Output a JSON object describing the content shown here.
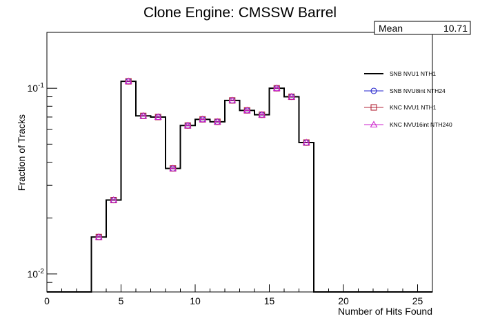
{
  "chart_data": {
    "type": "line",
    "title": "Clone Engine: CMSSW Barrel",
    "xlabel": "Number of Hits Found",
    "ylabel": "Fraction of Tracks",
    "x_range": [
      0,
      26
    ],
    "y_range": [
      0.008,
      0.2
    ],
    "y_scale": "log",
    "x_ticks": [
      0,
      5,
      10,
      15,
      20,
      25
    ],
    "y_tick_labels": [
      {
        "value": 0.01,
        "base": "10",
        "exp": "-2"
      },
      {
        "value": 0.1,
        "base": "10",
        "exp": "-1"
      }
    ],
    "bins": [
      0,
      1,
      2,
      3,
      4,
      5,
      6,
      7,
      8,
      9,
      10,
      11,
      12,
      13,
      14,
      15,
      16,
      17,
      18,
      19,
      20,
      21,
      22,
      23,
      24,
      25
    ],
    "series": [
      {
        "name": "SNB NVU1 NTH1",
        "style": "line",
        "color": "#000000",
        "values": [
          0,
          0,
          0,
          0.0158,
          0.025,
          0.109,
          0.071,
          0.07,
          0.037,
          0.063,
          0.068,
          0.066,
          0.086,
          0.076,
          0.072,
          0.1,
          0.09,
          0.051,
          0,
          0,
          0,
          0,
          0,
          0,
          0,
          0
        ]
      },
      {
        "name": "SNB NVU8int NTH24",
        "style": "circle",
        "color": "#2222cc",
        "values": [
          0,
          0,
          0,
          0.0158,
          0.025,
          0.109,
          0.071,
          0.07,
          0.037,
          0.063,
          0.068,
          0.066,
          0.086,
          0.076,
          0.072,
          0.1,
          0.09,
          0.051,
          0,
          0,
          0,
          0,
          0,
          0,
          0,
          0
        ]
      },
      {
        "name": "KNC NVU1 NTH1",
        "style": "square",
        "color": "#b3263a",
        "values": [
          0,
          0,
          0,
          0.0158,
          0.025,
          0.109,
          0.071,
          0.07,
          0.037,
          0.063,
          0.068,
          0.066,
          0.086,
          0.076,
          0.072,
          0.1,
          0.09,
          0.051,
          0,
          0,
          0,
          0,
          0,
          0,
          0,
          0
        ]
      },
      {
        "name": "KNC NVU16int NTH240",
        "style": "triangle",
        "color": "#cc22cc",
        "values": [
          0,
          0,
          0,
          0.0158,
          0.025,
          0.109,
          0.071,
          0.07,
          0.037,
          0.063,
          0.068,
          0.066,
          0.086,
          0.076,
          0.072,
          0.1,
          0.09,
          0.051,
          0,
          0,
          0,
          0,
          0,
          0,
          0,
          0
        ]
      }
    ],
    "stats": {
      "label": "Mean",
      "value": "10.71"
    },
    "legend_position": "top-right",
    "grid": false
  }
}
